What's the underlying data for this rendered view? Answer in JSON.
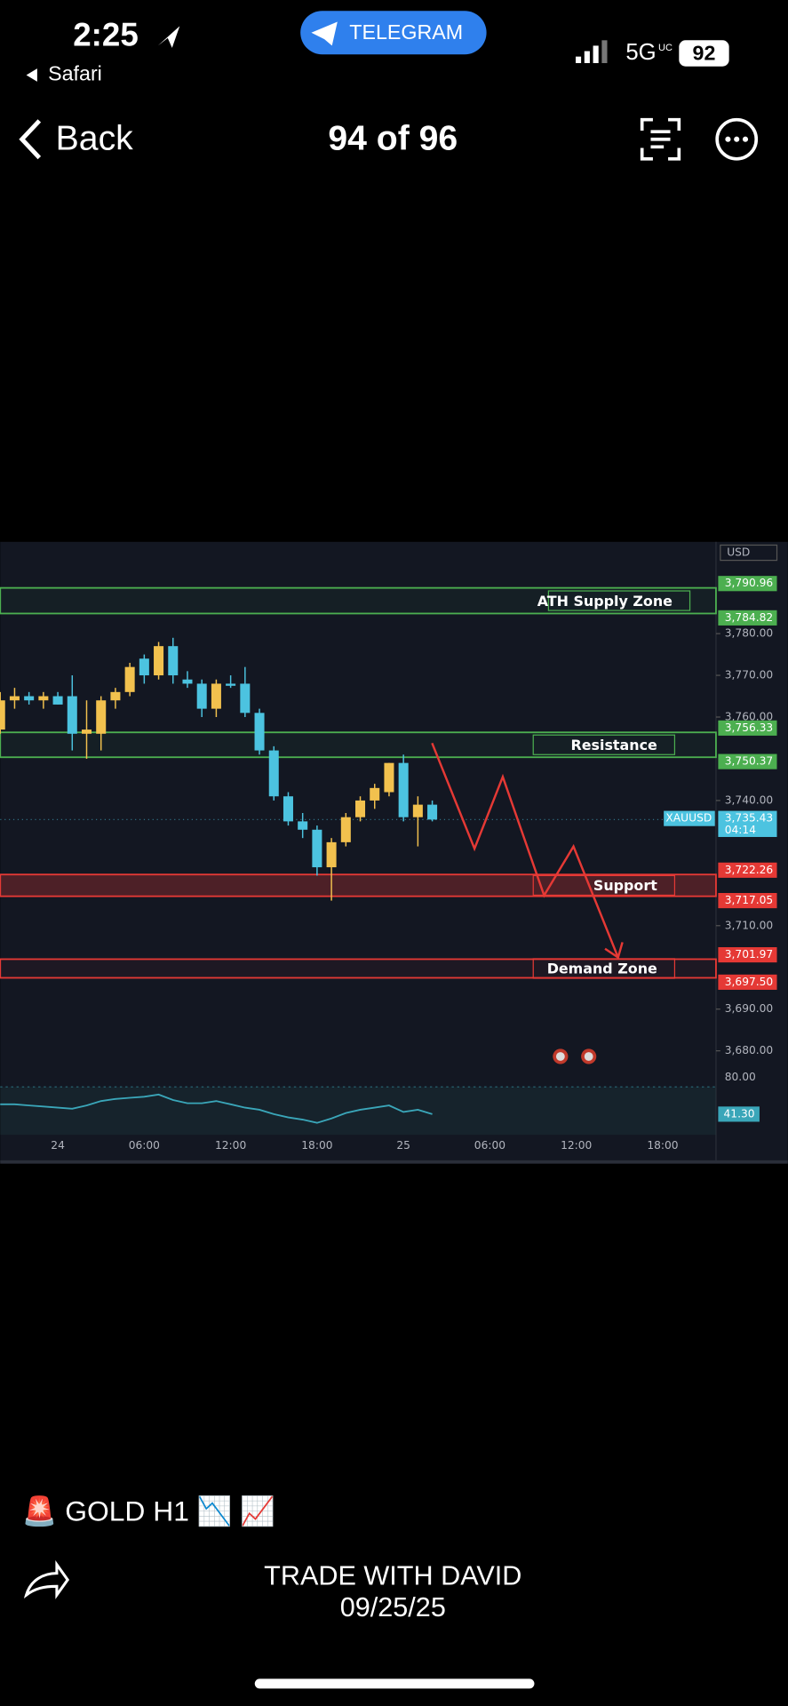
{
  "status_bar": {
    "time": "2:25",
    "back_app": "Safari",
    "banner": "TELEGRAM",
    "network": "5G",
    "network_sub": "UC",
    "battery": "92"
  },
  "nav": {
    "back": "Back",
    "title": "94 of 96"
  },
  "chart_data": {
    "type": "candlestick",
    "currency": "USD",
    "symbol": "XAUUSD",
    "x": [
      -4,
      -3,
      -2,
      -1,
      0,
      1,
      2,
      3,
      4,
      5,
      6,
      7,
      8,
      9,
      10,
      11,
      12,
      13,
      14,
      15,
      16,
      17,
      18,
      19,
      20,
      21,
      22,
      23,
      24,
      25,
      26
    ],
    "open": [
      3757,
      3764,
      3765,
      3764,
      3765,
      3765,
      3756,
      3756,
      3764,
      3766,
      3774,
      3770,
      3777,
      3769,
      3768,
      3762,
      3768,
      3768,
      3761,
      3752,
      3741,
      3735,
      3733,
      3724,
      3730,
      3736,
      3740,
      3742,
      3749,
      3736,
      3739
    ],
    "high": [
      3766,
      3767,
      3766,
      3766,
      3766,
      3770,
      3764,
      3765,
      3767,
      3773,
      3775,
      3778,
      3779,
      3771,
      3769,
      3769,
      3770,
      3772,
      3762,
      3753,
      3742,
      3737,
      3734,
      3731,
      3737,
      3741,
      3744,
      3749,
      3751,
      3741,
      3740
    ],
    "low": [
      3756,
      3762,
      3763,
      3762,
      3763,
      3752,
      3750,
      3752,
      3762,
      3765,
      3768,
      3769,
      3768,
      3767,
      3760,
      3760,
      3767,
      3760,
      3751,
      3740,
      3734,
      3731,
      3722,
      3716,
      3729,
      3735,
      3738,
      3741,
      3735,
      3729,
      3735
    ],
    "close": [
      3764,
      3765,
      3764,
      3765,
      3763,
      3756,
      3757,
      3764,
      3766,
      3772,
      3770,
      3777,
      3770,
      3768,
      3762,
      3768,
      3767.5,
      3761,
      3752,
      3741,
      3735,
      3733,
      3724,
      3730,
      3736,
      3740,
      3743,
      3749,
      3736,
      3739,
      3735.43
    ],
    "up_color": "#f2c14e",
    "down_color": "#4cc3e0",
    "xlim": [
      -4,
      45.7
    ],
    "ylim": [
      3675,
      3802
    ],
    "xticks": [
      {
        "value": 0,
        "label": "24"
      },
      {
        "value": 6,
        "label": "06:00"
      },
      {
        "value": 12,
        "label": "12:00"
      },
      {
        "value": 18,
        "label": "18:00"
      },
      {
        "value": 24,
        "label": "25"
      },
      {
        "value": 30,
        "label": "06:00"
      },
      {
        "value": 36,
        "label": "12:00"
      },
      {
        "value": 42,
        "label": "18:00"
      }
    ],
    "yticks": [
      {
        "value": 3780,
        "label": "3,780.00"
      },
      {
        "value": 3770,
        "label": "3,770.00"
      },
      {
        "value": 3760,
        "label": "3,760.00"
      },
      {
        "value": 3740,
        "label": "3,740.00"
      },
      {
        "value": 3710,
        "label": "3,710.00"
      },
      {
        "value": 3690,
        "label": "3,690.00"
      },
      {
        "value": 3680,
        "label": "3,680.00"
      }
    ],
    "zones": [
      {
        "name": "ATH Supply Zone",
        "range": [
          3784.82,
          3790.96
        ],
        "range_labels": [
          "3,784.82",
          "3,790.96"
        ],
        "color": "#4caf50"
      },
      {
        "name": "Resistance",
        "range": [
          3750.37,
          3756.33
        ],
        "range_labels": [
          "3,750.37",
          "3,756.33"
        ],
        "color": "#4caf50"
      },
      {
        "name": "Support",
        "range": [
          3717.05,
          3722.26
        ],
        "range_labels": [
          "3,717.05",
          "3,722.26"
        ],
        "color": "#e53935"
      },
      {
        "name": "Demand Zone",
        "range": [
          3697.5,
          3701.97
        ],
        "range_labels": [
          "3,697.50",
          "3,701.97"
        ],
        "color": "#e53935"
      }
    ],
    "last_price": {
      "value": 3735.43,
      "label": "3,735.43",
      "countdown": "04:14",
      "color": "#4cc3e0"
    },
    "rsi": {
      "values": [
        51.6,
        51.6,
        50.4,
        49.3,
        48.1,
        47.0,
        50.4,
        55.0,
        57.2,
        58.4,
        59.5,
        61.8,
        56.1,
        52.7,
        52.7,
        55.0,
        51.6,
        48.1,
        45.9,
        41.3,
        37.9,
        35.6,
        32.2,
        36.8,
        42.5,
        45.9,
        48.1,
        50.4,
        43.6,
        45.9,
        41.3
      ],
      "ylim": [
        19.7,
        85.7
      ],
      "yticks": [
        {
          "value": 80,
          "label": "80.00"
        }
      ],
      "last": {
        "value": 41.3,
        "label": "41.30"
      },
      "color": "#3aa6b9"
    }
  },
  "caption": {
    "title": "🚨 GOLD H1 📉 📈",
    "author": "TRADE WITH DAVID",
    "date": "09/25/25"
  }
}
